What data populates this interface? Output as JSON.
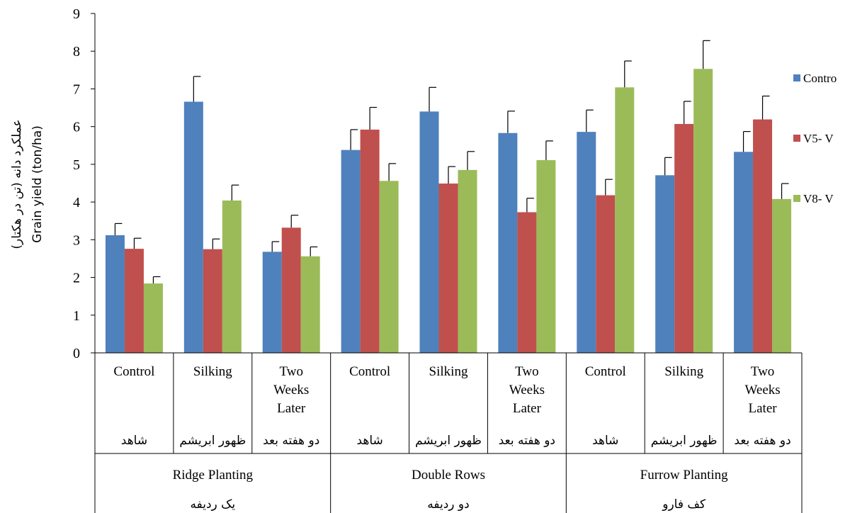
{
  "chart_data": {
    "type": "bar",
    "ylabel_fa": "عملکرد دانه (تن در هکتار)",
    "ylabel_en": "Grain yield  (ton/ha)",
    "ylim": [
      0,
      9
    ],
    "yticks": [
      "0",
      "1",
      "2",
      "3",
      "4",
      "5",
      "6",
      "7",
      "8",
      "9"
    ],
    "grid": false,
    "legend_position": "right",
    "groups": [
      {
        "label_en": "Ridge Planting",
        "label_fa": "یک ردیفه"
      },
      {
        "label_en": "Double Rows",
        "label_fa": "دو ردیفه"
      },
      {
        "label_en": "Furrow Planting",
        "label_fa": "کف فارو"
      }
    ],
    "categories": [
      {
        "label_en": "Control",
        "label_fa": "شاهد"
      },
      {
        "label_en": "Silking",
        "label_fa": "ظهور ابریشم"
      },
      {
        "label_en": "Two Weeks Later",
        "label_fa": "دو هفته بعد"
      },
      {
        "label_en": "Control",
        "label_fa": "شاهد"
      },
      {
        "label_en": "Silking",
        "label_fa": "ظهور ابریشم"
      },
      {
        "label_en": "Two Weeks Later",
        "label_fa": "دو هفته بعد"
      },
      {
        "label_en": "Control",
        "label_fa": "شاهد"
      },
      {
        "label_en": "Silking",
        "label_fa": "ظهور ابریشم"
      },
      {
        "label_en": "Two Weeks Later",
        "label_fa": "دو هفته بعد"
      }
    ],
    "series": [
      {
        "name": "Contro",
        "color": "#4f81bd",
        "values": [
          3.12,
          6.66,
          2.68,
          5.38,
          6.4,
          5.83,
          5.86,
          4.71,
          5.33
        ],
        "errors": [
          0.31,
          0.67,
          0.27,
          0.54,
          0.64,
          0.58,
          0.58,
          0.47,
          0.54
        ]
      },
      {
        "name": "V5- V",
        "color": "#c0504d",
        "values": [
          2.76,
          2.75,
          3.32,
          5.92,
          4.49,
          3.73,
          4.18,
          6.07,
          6.19
        ],
        "errors": [
          0.28,
          0.27,
          0.33,
          0.59,
          0.45,
          0.37,
          0.42,
          0.6,
          0.62
        ]
      },
      {
        "name": "V8- V",
        "color": "#9bbb59",
        "values": [
          1.84,
          4.04,
          2.56,
          4.56,
          4.85,
          5.11,
          7.04,
          7.53,
          4.08
        ],
        "errors": [
          0.18,
          0.41,
          0.25,
          0.46,
          0.49,
          0.51,
          0.7,
          0.75,
          0.41
        ]
      }
    ]
  }
}
